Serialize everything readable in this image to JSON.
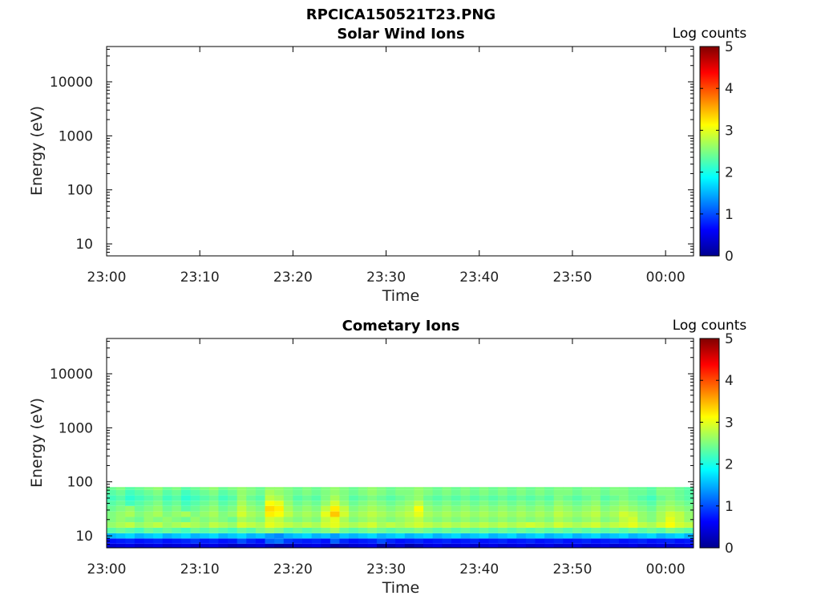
{
  "page_title": "RPCICA150521T23.PNG",
  "chart_data": [
    {
      "type": "heatmap",
      "title": "Solar Wind Ions",
      "xlabel": "Time",
      "ylabel": "Energy (eV)",
      "x_range": [
        "23:00",
        "00:03"
      ],
      "x_ticks": [
        "23:00",
        "23:10",
        "23:20",
        "23:30",
        "23:40",
        "23:50",
        "00:00"
      ],
      "y_scale": "log",
      "y_range": [
        6,
        45000
      ],
      "y_ticks": [
        "10",
        "100",
        "1000",
        "10000"
      ],
      "colorbar": {
        "label": "Log counts",
        "range": [
          0,
          5
        ],
        "ticks": [
          "0",
          "1",
          "2",
          "3",
          "4",
          "5"
        ],
        "colormap": "jet"
      },
      "energy_levels_eV": [],
      "time_bins": 0,
      "log_counts": [],
      "note_visible": "empty panel"
    },
    {
      "type": "heatmap",
      "title": "Cometary Ions",
      "xlabel": "Time",
      "ylabel": "Energy (eV)",
      "x_range": [
        "23:00",
        "00:03"
      ],
      "x_ticks": [
        "23:00",
        "23:10",
        "23:20",
        "23:30",
        "23:40",
        "23:50",
        "00:00"
      ],
      "y_scale": "log",
      "y_range": [
        6,
        45000
      ],
      "y_ticks": [
        "10",
        "100",
        "1000",
        "10000"
      ],
      "colorbar": {
        "label": "Log counts",
        "range": [
          0,
          5
        ],
        "ticks": [
          "0",
          "1",
          "2",
          "3",
          "4",
          "5"
        ],
        "colormap": "jet"
      },
      "energy_levels_eV": [
        6.4,
        8,
        10,
        12.5,
        16,
        20,
        25,
        32,
        40,
        50,
        63,
        80
      ],
      "time_bins": 63,
      "log_counts_profile_by_level": [
        0.45,
        0.75,
        1.6,
        2.35,
        2.75,
        2.6,
        2.65,
        2.55,
        2.4,
        2.3,
        2.4,
        2.5
      ],
      "time_bin_minutes": 1,
      "log_counts": [
        [
          0.4,
          0.45,
          0.5,
          0.4,
          0.45,
          0.5,
          0.4,
          0.45,
          0.5,
          0.4,
          0.45,
          0.5,
          0.4,
          0.3,
          0.35,
          0.4,
          0.45,
          0.3,
          0.2,
          0.25,
          0.4,
          0.45,
          0.5,
          0.4,
          0.2,
          0.3,
          0.4,
          0.45,
          0.5,
          0.2,
          0.3,
          0.4,
          0.2,
          0.3,
          0.45,
          0.5,
          0.4,
          0.45,
          0.5,
          0.4,
          0.45,
          0.5,
          0.4,
          0.45,
          0.5,
          0.4,
          0.45,
          0.5,
          0.4,
          0.45,
          0.5,
          0.4,
          0.45,
          0.5,
          0.4,
          0.45,
          0.5,
          0.4,
          0.45,
          0.5,
          0.4,
          0.45,
          0.5
        ],
        [
          0.7,
          0.75,
          0.8,
          0.7,
          0.75,
          0.8,
          0.7,
          0.75,
          0.8,
          0.9,
          0.75,
          0.8,
          0.7,
          0.75,
          1.0,
          0.8,
          0.7,
          1.1,
          1.2,
          0.9,
          0.8,
          0.75,
          0.8,
          0.7,
          1.1,
          0.8,
          0.7,
          0.75,
          0.8,
          1.0,
          0.8,
          0.7,
          0.75,
          0.8,
          0.7,
          0.75,
          0.8,
          0.7,
          0.75,
          0.8,
          0.7,
          0.75,
          0.8,
          0.7,
          0.75,
          0.8,
          0.7,
          0.75,
          0.8,
          0.7,
          0.75,
          0.8,
          0.7,
          0.75,
          0.8,
          0.7,
          0.75,
          0.8,
          0.7,
          0.75,
          0.8,
          0.7,
          0.75
        ],
        [
          1.5,
          1.6,
          1.7,
          1.5,
          1.6,
          1.7,
          1.5,
          1.6,
          1.7,
          1.5,
          1.6,
          1.7,
          1.5,
          1.6,
          1.7,
          1.5,
          1.6,
          1.4,
          1.3,
          1.5,
          1.6,
          1.7,
          1.5,
          1.6,
          1.4,
          1.6,
          1.5,
          1.6,
          1.7,
          1.5,
          1.6,
          1.7,
          1.5,
          1.6,
          1.7,
          1.5,
          1.6,
          1.7,
          1.5,
          1.6,
          1.7,
          1.5,
          1.6,
          1.7,
          1.5,
          1.6,
          1.7,
          1.5,
          1.6,
          1.7,
          1.5,
          1.6,
          1.7,
          1.5,
          1.6,
          1.7,
          1.5,
          1.6,
          1.7,
          1.5,
          1.6,
          1.7,
          1.5
        ],
        [
          2.3,
          2.4,
          2.3,
          2.2,
          2.4,
          2.3,
          2.4,
          2.3,
          2.2,
          2.4,
          2.3,
          2.4,
          2.3,
          2.2,
          2.4,
          2.3,
          2.5,
          2.6,
          2.5,
          2.3,
          2.4,
          2.3,
          2.4,
          2.5,
          2.7,
          2.4,
          2.3,
          2.4,
          2.5,
          2.4,
          2.3,
          2.4,
          2.4,
          2.5,
          2.4,
          2.3,
          2.4,
          2.3,
          2.4,
          2.3,
          2.4,
          2.3,
          2.4,
          2.3,
          2.4,
          2.3,
          2.4,
          2.3,
          2.4,
          2.3,
          2.4,
          2.3,
          2.4,
          2.3,
          2.4,
          2.3,
          2.4,
          2.3,
          2.4,
          2.3,
          2.5,
          2.4,
          2.3
        ],
        [
          2.6,
          2.7,
          2.8,
          2.6,
          2.7,
          2.8,
          2.6,
          2.7,
          2.8,
          2.7,
          2.6,
          2.8,
          2.7,
          2.6,
          2.9,
          2.8,
          2.7,
          3.0,
          2.9,
          2.8,
          2.7,
          2.8,
          2.7,
          2.9,
          3.0,
          2.8,
          2.7,
          2.8,
          2.9,
          2.7,
          2.8,
          2.7,
          2.8,
          2.9,
          2.8,
          2.7,
          2.8,
          2.7,
          2.8,
          2.7,
          2.8,
          2.7,
          2.8,
          2.7,
          2.8,
          2.9,
          2.8,
          2.7,
          2.9,
          2.8,
          2.7,
          2.8,
          2.9,
          2.7,
          2.8,
          2.9,
          3.0,
          2.8,
          2.7,
          2.9,
          3.1,
          2.9,
          2.8
        ],
        [
          2.5,
          2.6,
          2.5,
          2.4,
          2.6,
          2.5,
          2.6,
          2.5,
          2.4,
          2.6,
          2.5,
          2.6,
          2.5,
          2.4,
          2.7,
          2.6,
          2.5,
          2.9,
          2.8,
          2.6,
          2.5,
          2.6,
          2.5,
          2.8,
          3.0,
          2.7,
          2.5,
          2.6,
          2.7,
          2.6,
          2.5,
          2.6,
          2.7,
          2.8,
          2.6,
          2.5,
          2.6,
          2.5,
          2.6,
          2.5,
          2.6,
          2.5,
          2.6,
          2.5,
          2.6,
          2.5,
          2.6,
          2.5,
          2.7,
          2.6,
          2.5,
          2.6,
          2.7,
          2.5,
          2.6,
          2.8,
          2.9,
          2.6,
          2.5,
          2.7,
          3.0,
          2.8,
          2.6
        ],
        [
          2.5,
          2.6,
          2.7,
          2.5,
          2.6,
          2.7,
          2.5,
          2.6,
          2.7,
          2.5,
          2.6,
          2.7,
          2.5,
          2.6,
          2.9,
          2.7,
          2.6,
          3.2,
          3.1,
          2.8,
          2.6,
          2.7,
          2.6,
          3.0,
          3.4,
          2.9,
          2.6,
          2.7,
          2.8,
          2.7,
          2.6,
          2.7,
          2.8,
          3.0,
          2.7,
          2.6,
          2.7,
          2.6,
          2.7,
          2.6,
          2.7,
          2.6,
          2.7,
          2.6,
          2.7,
          2.6,
          2.7,
          2.6,
          2.8,
          2.7,
          2.6,
          2.7,
          2.8,
          2.6,
          2.7,
          2.9,
          2.8,
          2.6,
          2.5,
          2.7,
          2.9,
          2.8,
          2.6
        ],
        [
          2.4,
          2.5,
          2.6,
          2.4,
          2.5,
          2.6,
          2.4,
          2.5,
          2.3,
          2.4,
          2.5,
          2.6,
          2.4,
          2.5,
          2.8,
          2.6,
          2.5,
          3.3,
          3.2,
          2.7,
          2.5,
          2.6,
          2.5,
          2.8,
          3.2,
          2.8,
          2.5,
          2.6,
          2.7,
          2.6,
          2.5,
          2.6,
          2.7,
          3.1,
          2.6,
          2.5,
          2.6,
          2.5,
          2.6,
          2.5,
          2.6,
          2.5,
          2.6,
          2.5,
          2.6,
          2.5,
          2.6,
          2.5,
          2.7,
          2.6,
          2.5,
          2.6,
          2.7,
          2.5,
          2.6,
          2.7,
          2.6,
          2.5,
          2.4,
          2.6,
          2.7,
          2.6,
          2.5
        ],
        [
          2.3,
          2.4,
          2.2,
          2.3,
          2.4,
          2.5,
          2.3,
          2.4,
          2.2,
          2.3,
          2.4,
          2.5,
          2.3,
          2.4,
          2.7,
          2.5,
          2.4,
          3.1,
          3.0,
          2.6,
          2.4,
          2.5,
          2.4,
          2.6,
          2.9,
          2.6,
          2.4,
          2.5,
          2.6,
          2.5,
          2.4,
          2.5,
          2.6,
          2.8,
          2.5,
          2.4,
          2.5,
          2.4,
          2.5,
          2.4,
          2.5,
          2.4,
          2.5,
          2.4,
          2.5,
          2.4,
          2.5,
          2.4,
          2.6,
          2.5,
          2.4,
          2.5,
          2.6,
          2.4,
          2.5,
          2.6,
          2.5,
          2.4,
          2.3,
          2.5,
          2.6,
          2.5,
          2.4
        ],
        [
          2.2,
          2.3,
          2.1,
          2.2,
          2.3,
          2.4,
          2.2,
          2.3,
          2.1,
          2.2,
          2.3,
          2.4,
          2.2,
          2.3,
          2.6,
          2.4,
          2.3,
          2.8,
          2.7,
          2.5,
          2.3,
          2.4,
          2.3,
          2.5,
          2.7,
          2.5,
          2.3,
          2.4,
          2.5,
          2.4,
          2.3,
          2.4,
          2.5,
          2.6,
          2.4,
          2.3,
          2.4,
          2.3,
          2.4,
          2.3,
          2.4,
          2.3,
          2.4,
          2.3,
          2.4,
          2.3,
          2.4,
          2.3,
          2.5,
          2.4,
          2.3,
          2.4,
          2.5,
          2.3,
          2.4,
          2.5,
          2.4,
          2.3,
          2.2,
          2.4,
          2.5,
          2.4,
          2.3
        ],
        [
          2.3,
          2.4,
          2.2,
          2.3,
          2.4,
          2.5,
          2.3,
          2.4,
          2.2,
          2.3,
          2.4,
          2.5,
          2.3,
          2.4,
          2.6,
          2.5,
          2.4,
          2.7,
          2.6,
          2.5,
          2.4,
          2.5,
          2.4,
          2.5,
          2.6,
          2.5,
          2.4,
          2.5,
          2.6,
          2.5,
          2.4,
          2.5,
          2.5,
          2.6,
          2.5,
          2.4,
          2.5,
          2.4,
          2.5,
          2.4,
          2.5,
          2.4,
          2.5,
          2.4,
          2.5,
          2.4,
          2.5,
          2.4,
          2.5,
          2.5,
          2.4,
          2.5,
          2.5,
          2.4,
          2.5,
          2.5,
          2.4,
          2.4,
          2.3,
          2.5,
          2.5,
          2.4,
          2.3
        ],
        [
          2.4,
          2.5,
          2.3,
          2.4,
          2.5,
          2.6,
          2.4,
          2.5,
          2.3,
          2.4,
          2.5,
          2.6,
          2.4,
          2.5,
          2.6,
          2.5,
          2.4,
          2.6,
          2.6,
          2.5,
          2.4,
          2.5,
          2.4,
          2.5,
          2.6,
          2.5,
          2.4,
          2.5,
          2.6,
          2.5,
          2.4,
          2.5,
          2.5,
          2.6,
          2.5,
          2.4,
          2.5,
          2.4,
          2.5,
          2.4,
          2.5,
          2.4,
          2.5,
          2.4,
          2.5,
          2.4,
          2.5,
          2.4,
          2.5,
          2.5,
          2.4,
          2.5,
          2.5,
          2.4,
          2.5,
          2.5,
          2.4,
          2.4,
          2.3,
          2.5,
          2.5,
          2.4,
          2.3
        ]
      ]
    }
  ]
}
